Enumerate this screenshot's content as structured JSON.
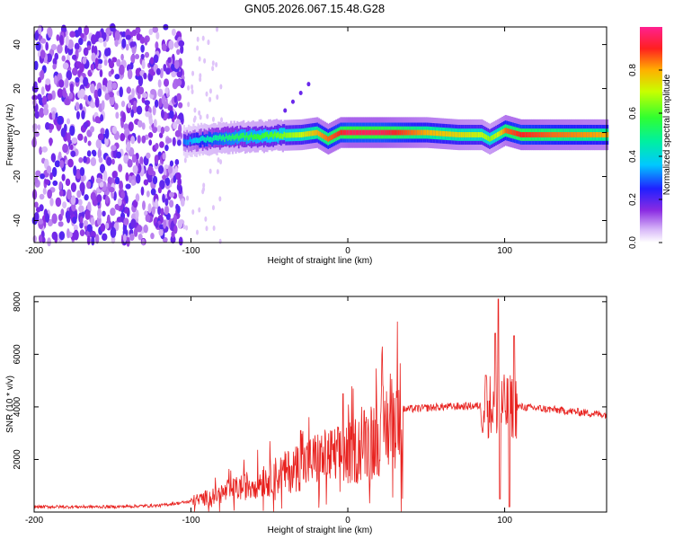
{
  "figure_title": "GN05.2026.067.15.48.G28",
  "chart_data": [
    {
      "type": "heatmap",
      "xlabel": "Height of straight line (km)",
      "ylabel": "Frequency (Hz)",
      "xlim": [
        -200,
        165
      ],
      "ylim": [
        -50,
        48
      ],
      "xticks": [
        -200,
        -100,
        0,
        100
      ],
      "xtick_labels": [
        "-200",
        "-100",
        "0",
        "100"
      ],
      "yticks": [
        -40,
        -20,
        0,
        20,
        40
      ],
      "ytick_labels": [
        "-40",
        "-20",
        "0",
        "20",
        "40"
      ],
      "colorbar": {
        "label": "Normalized spectral amplitude",
        "range": [
          0,
          1
        ],
        "ticks": [
          0.0,
          0.2,
          0.4,
          0.6,
          0.8
        ],
        "tick_labels": [
          "0.0",
          "0.2",
          "0.4",
          "0.6",
          "0.8"
        ]
      },
      "noise_region_x": [
        -200,
        -105
      ],
      "ridge": {
        "x": [
          -105,
          -90,
          -70,
          -50,
          -30,
          -20,
          -13,
          -5,
          0,
          20,
          50,
          70,
          85,
          90,
          95,
          100,
          110,
          130,
          165
        ],
        "freq": [
          -4,
          -3,
          -2,
          -1.5,
          -1,
          0,
          -3,
          0,
          0,
          0,
          0,
          -1,
          -1,
          -3,
          -1,
          1,
          -1,
          -1,
          -1
        ],
        "amplitude": [
          0.3,
          0.45,
          0.55,
          0.6,
          0.7,
          0.8,
          0.85,
          0.9,
          0.95,
          0.95,
          0.8,
          0.75,
          0.7,
          0.65,
          0.7,
          0.85,
          0.9,
          0.85,
          0.8
        ]
      }
    },
    {
      "type": "line",
      "xlabel": "Height of straight line (km)",
      "ylabel": "SNR (10 * v/v)",
      "xlim": [
        -200,
        165
      ],
      "ylim": [
        0,
        8200
      ],
      "xticks": [
        -200,
        -100,
        0,
        100
      ],
      "xtick_labels": [
        "-200",
        "-100",
        "0",
        "100"
      ],
      "yticks": [
        2000,
        4000,
        6000,
        8000
      ],
      "ytick_labels": [
        "2000",
        "4000",
        "6000",
        "8000"
      ],
      "series": [
        {
          "name": "SNR",
          "color": "#e8221f",
          "envelope_x": [
            -200,
            -150,
            -120,
            -100,
            -80,
            -60,
            -40,
            -20,
            0,
            20,
            35,
            60,
            90,
            100,
            110,
            130,
            165
          ],
          "envelope_y": [
            200,
            200,
            250,
            400,
            700,
            1100,
            1500,
            2000,
            2200,
            3000,
            3900,
            4000,
            4050,
            4000,
            4000,
            3900,
            3700
          ],
          "spikes": [
            {
              "x": 96,
              "y": 8100
            },
            {
              "x": 94,
              "y": 6800
            },
            {
              "x": 97,
              "y": 500
            },
            {
              "x": 103,
              "y": 200
            },
            {
              "x": 106,
              "y": 6700
            },
            {
              "x": 88,
              "y": 5200
            },
            {
              "x": -3,
              "y": 4500
            },
            {
              "x": -30,
              "y": 3100
            }
          ]
        }
      ]
    }
  ]
}
